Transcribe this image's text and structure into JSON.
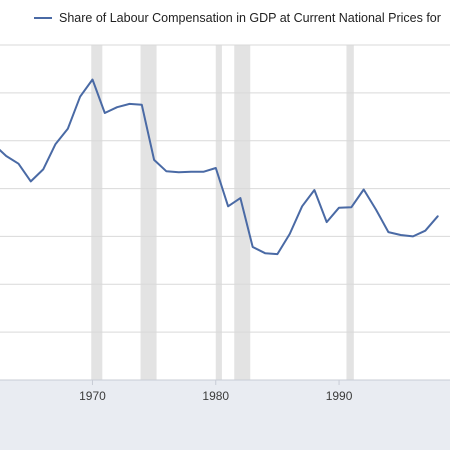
{
  "chart_data": {
    "type": "line",
    "title": "",
    "xlabel": "",
    "ylabel": "",
    "legend_position": "top",
    "grid": "horizontal",
    "colors": {
      "line": "#4a6aa5",
      "recession": "#e3e3e3",
      "grid": "#d9d9d9",
      "axis_band": "#e9ecf2"
    },
    "x_ticks": [
      1970,
      1980,
      1990
    ],
    "xlim": [
      1962.5,
      1999.0
    ],
    "ylim": [
      0.0,
      7.0
    ],
    "y_gridlines": [
      1,
      2,
      3,
      4,
      5,
      6,
      7
    ],
    "recessions": [
      [
        1969.9,
        1970.8
      ],
      [
        1973.9,
        1975.2
      ],
      [
        1980.0,
        1980.5
      ],
      [
        1981.5,
        1982.8
      ],
      [
        1990.6,
        1991.2
      ]
    ],
    "series": [
      {
        "name": "Share of Labour Compensation in GDP at Current National Prices for",
        "x": [
          1962,
          1963,
          1964,
          1965,
          1966,
          1967,
          1968,
          1969,
          1970,
          1971,
          1972,
          1973,
          1974,
          1975,
          1976,
          1977,
          1978,
          1979,
          1980,
          1981,
          1982,
          1983,
          1984,
          1985,
          1986,
          1987,
          1988,
          1989,
          1990,
          1991,
          1992,
          1993,
          1994,
          1995,
          1996,
          1997,
          1998
        ],
        "values": [
          4.92,
          4.68,
          4.52,
          4.15,
          4.4,
          4.93,
          5.25,
          5.92,
          6.28,
          5.58,
          5.7,
          5.77,
          5.75,
          4.6,
          4.36,
          4.34,
          4.35,
          4.35,
          4.43,
          3.63,
          3.8,
          2.78,
          2.65,
          2.63,
          3.05,
          3.63,
          3.97,
          3.3,
          3.6,
          3.61,
          3.98,
          3.56,
          3.09,
          3.03,
          3.0,
          3.12,
          3.42
        ]
      }
    ]
  }
}
